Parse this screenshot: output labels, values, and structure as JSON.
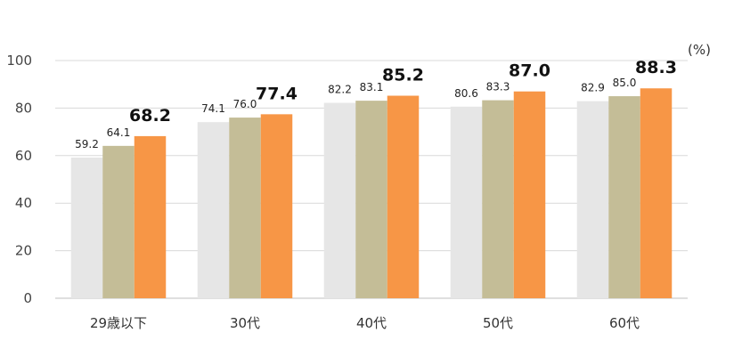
{
  "chart_data": {
    "type": "bar",
    "unit": "(%)",
    "categories": [
      "29歳以下",
      "30代",
      "40代",
      "50代",
      "60代"
    ],
    "series": [
      {
        "values": [
          59.2,
          74.1,
          82.2,
          80.6,
          82.9
        ],
        "color": "#e6e6e6"
      },
      {
        "values": [
          64.1,
          76.0,
          83.1,
          83.3,
          85.0
        ],
        "color": "#c4bd97"
      },
      {
        "values": [
          68.2,
          77.4,
          85.2,
          87.0,
          88.3
        ],
        "color": "#f79646"
      }
    ],
    "value_labels": [
      [
        "59.2",
        "74.1",
        "82.2",
        "80.6",
        "82.9"
      ],
      [
        "64.1",
        "76.0",
        "83.1",
        "83.3",
        "85.0"
      ],
      [
        "68.2",
        "77.4",
        "85.2",
        "87.0",
        "88.3"
      ]
    ],
    "ylim": [
      0,
      100
    ],
    "yticks": [
      "0",
      "20",
      "40",
      "60",
      "80",
      "100"
    ],
    "grid": true,
    "legend": "none"
  }
}
